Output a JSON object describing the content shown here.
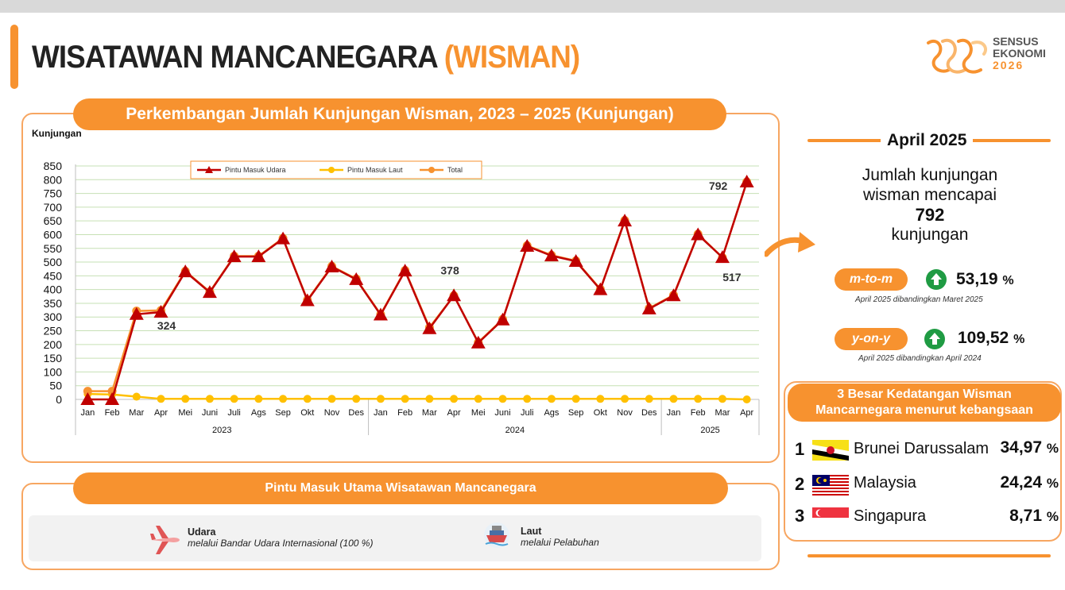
{
  "header": {
    "title_main": "WISATAWAN MANCANEGARA",
    "title_highlight": "(WISMAN)",
    "logo_line1": "SENSUS",
    "logo_line2": "EKONOMI",
    "logo_line3": "2026"
  },
  "chart_panel": {
    "title": "Perkembangan Jumlah Kunjungan Wisman, 2023 – 2025 (Kunjungan)"
  },
  "chart_data": {
    "type": "line",
    "ylabel": "Kunjungan",
    "ylim": [
      0,
      850
    ],
    "yticks": [
      0,
      50,
      100,
      150,
      200,
      250,
      300,
      350,
      400,
      450,
      500,
      550,
      600,
      650,
      700,
      750,
      800,
      850
    ],
    "grid": true,
    "legend_position": "top",
    "categories": [
      "Jan",
      "Feb",
      "Mar",
      "Apr",
      "Mei",
      "Juni",
      "Juli",
      "Ags",
      "Sep",
      "Okt",
      "Nov",
      "Des",
      "Jan",
      "Feb",
      "Mar",
      "Apr",
      "Mei",
      "Juni",
      "Juli",
      "Ags",
      "Sep",
      "Okt",
      "Nov",
      "Des",
      "Jan",
      "Feb",
      "Mar",
      "Apr"
    ],
    "year_groups": [
      {
        "label": "2023",
        "count": 12
      },
      {
        "label": "2024",
        "count": 12
      },
      {
        "label": "2025",
        "count": 4
      }
    ],
    "series": [
      {
        "name": "Pintu Masuk Udara",
        "color": "#c00000",
        "marker": "triangle",
        "values": [
          0,
          0,
          310,
          318,
          465,
          390,
          520,
          520,
          585,
          360,
          483,
          437,
          308,
          468,
          258,
          378,
          206,
          290,
          558,
          523,
          503,
          400,
          650,
          330,
          378,
          600,
          517,
          792
        ]
      },
      {
        "name": "Pintu Masuk Laut",
        "color": "#ffc000",
        "marker": "circle",
        "values": [
          20,
          18,
          10,
          2,
          2,
          2,
          2,
          2,
          2,
          2,
          2,
          2,
          2,
          2,
          2,
          2,
          2,
          2,
          2,
          2,
          2,
          2,
          2,
          2,
          2,
          2,
          2,
          0
        ]
      },
      {
        "name": "Total",
        "color": "#f7922f",
        "marker": "circle",
        "values": [
          30,
          30,
          322,
          324,
          467,
          392,
          522,
          522,
          587,
          362,
          485,
          439,
          310,
          470,
          262,
          378,
          208,
          292,
          560,
          525,
          505,
          402,
          652,
          332,
          380,
          602,
          517,
          792
        ]
      }
    ],
    "data_labels": [
      {
        "index": 3,
        "text": "324"
      },
      {
        "index": 15,
        "text": "378"
      },
      {
        "index": 26,
        "text": "517"
      },
      {
        "index": 27,
        "text": "792"
      }
    ]
  },
  "entry_points": {
    "title": "Pintu Masuk Utama Wisatawan Mancanegara",
    "air": {
      "name": "Udara",
      "desc": "melalui Bandar Udara Internasional (100 %)"
    },
    "sea": {
      "name": "Laut",
      "desc": "melalui Pelabuhan"
    }
  },
  "summary": {
    "period": "April 2025",
    "line1": "Jumlah kunjungan",
    "line2": "wisman mencapai",
    "value": "792",
    "unit": "kunjungan",
    "mtom": {
      "label": "m-to-m",
      "value": "53,19",
      "unit": "%",
      "note": "April 2025 dibandingkan Maret 2025"
    },
    "yony": {
      "label": "y-on-y",
      "value": "109,52",
      "unit": "%",
      "note": "April 2025 dibandingkan April 2024"
    }
  },
  "top3": {
    "title_line1": "3 Besar Kedatangan Wisman",
    "title_line2": "Mancarnegara menurut kebangsaan",
    "items": [
      {
        "rank": "1",
        "country": "Brunei Darussalam",
        "value": "34,97",
        "unit": "%"
      },
      {
        "rank": "2",
        "country": "Malaysia",
        "value": "24,24",
        "unit": "%"
      },
      {
        "rank": "3",
        "country": "Singapura",
        "value": "8,71",
        "unit": "%"
      }
    ]
  },
  "colors": {
    "accent": "#f7922f",
    "air_line": "#c00000",
    "sea_line": "#ffc000",
    "up_green": "#1f9b43"
  }
}
